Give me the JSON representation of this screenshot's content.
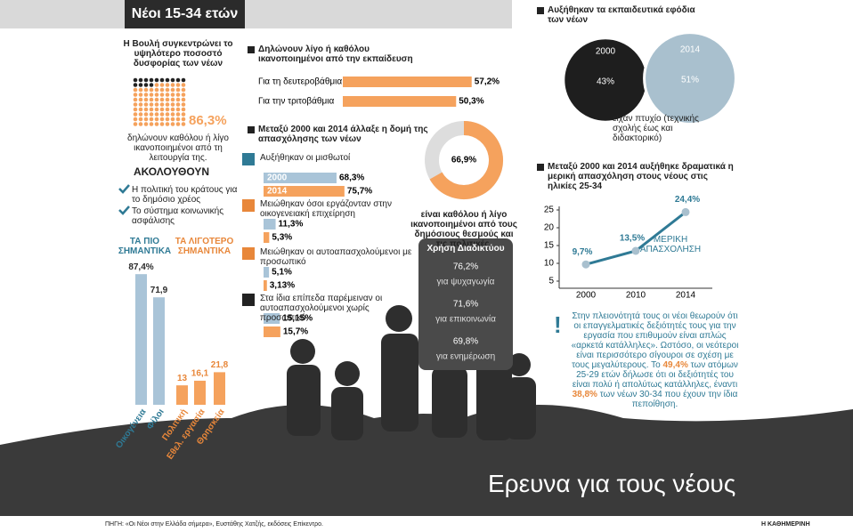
{
  "header": {
    "tag": "Νέοι 15-34 ετών",
    "title": "Ερευνα για τους νέους",
    "source": "ΠΗΓΗ: «Οι Νέοι στην Ελλάδα σήμερα», Ευστάθης Χατζής, εκδόσεις Επίκεντρο.",
    "publisher": "Η ΚΑΘΗΜΕΡΙΝΗ"
  },
  "parliament": {
    "title": "Η Βουλή συγκεντρώνει το υψηλότερο ποσοστό δυσφορίας των νέων",
    "value": 86.3,
    "value_label": "86,3%",
    "caption": "δηλώνουν καθόλου ή λίγο ικανοποιημένοι από τη λειτουργία της.",
    "follow_title": "ΑΚΟΛΟΥΘΟΥΝ",
    "follow_items": [
      "Η πολιτική του κράτους για το δημόσιο χρέος",
      "Το σύστημα κοινωνικής ασφάλισης"
    ]
  },
  "importance": {
    "most_title": "ΤΑ ΠΙΟ ΣΗΜΑΝΤΙΚΑ",
    "least_title": "ΤΑ ΛΙΓΟΤΕΡΟ ΣΗΜΑΝΤΙΚΑ",
    "categories": [
      "Οικογένεια",
      "Φίλοι",
      "Πολιτική",
      "Εθελ. εργασία",
      "Θρησκεία"
    ],
    "values": [
      87.4,
      71.9,
      13,
      16.1,
      21.8
    ],
    "value_labels": [
      "87,4%",
      "71,9",
      "13",
      "16,1",
      "21,8"
    ],
    "colors": [
      "#a9c4d8",
      "#a9c4d8",
      "#f5a25d",
      "#f5a25d",
      "#f5a25d"
    ]
  },
  "education": {
    "title": "Δηλώνουν λίγο ή καθόλου ικανοποιημένοι από την εκπαίδευση",
    "categories": [
      "Για τη δευτεροβάθμια",
      "Για την τριτοβάθμια"
    ],
    "values": [
      57.2,
      50.3
    ],
    "value_labels": [
      "57,2%",
      "50,3%"
    ],
    "color": "#f5a25d"
  },
  "employment": {
    "title": "Μεταξύ 2000 και 2014 άλλαξε η δομή της απασχόλησης των νέων",
    "years": [
      "2000",
      "2014"
    ],
    "colors": [
      "#a9c4d8",
      "#f5a25d"
    ],
    "groups": [
      {
        "label": "Αυξήθηκαν οι μισθωτοί",
        "values": [
          68.3,
          75.7
        ],
        "value_labels": [
          "68,3%",
          "75,7%"
        ]
      },
      {
        "label": "Μειώθηκαν όσοι εργάζονταν στην οικογενειακή επιχείρηση",
        "values": [
          11.3,
          5.3
        ],
        "value_labels": [
          "11,3%",
          "5,3%"
        ]
      },
      {
        "label": "Μειώθηκαν οι αυτοαπασχολούμενοι με προσωπικό",
        "values": [
          5.1,
          3.13
        ],
        "value_labels": [
          "5,1%",
          "3,13%"
        ]
      },
      {
        "label": "Στα ίδια επίπεδα παρέμειναν οι αυτοαπασχολούμενοι χωρίς προσωπικό",
        "values": [
          15.15,
          15.7
        ],
        "value_labels": [
          "15,15%",
          "15,7%"
        ]
      }
    ]
  },
  "institutions": {
    "value": 66.9,
    "value_label": "66,9%",
    "caption": "είναι καθόλου ή λίγο ικανοποιημένοι από τους δημόσιους θεσμούς και τις πολιτικές."
  },
  "internet": {
    "title": "Χρήση Διαδικτύου",
    "items": [
      {
        "value": 76.2,
        "value_label": "76,2%",
        "label": "για ψυχαγωγία"
      },
      {
        "value": 71.6,
        "value_label": "71,6%",
        "label": "για επικοινωνία"
      },
      {
        "value": 69.8,
        "value_label": "69,8%",
        "label": "για ενημέρωση"
      }
    ]
  },
  "qualifications": {
    "title": "Αυξήθηκαν τα εκπαιδευτικά εφόδια των νέων",
    "circles": [
      {
        "year": "2000",
        "value": 43,
        "value_label": "43%",
        "color": "#1e1e1e"
      },
      {
        "year": "2014",
        "value": 51,
        "value_label": "51%",
        "color": "#a9c0ce"
      }
    ],
    "caption": "είχαν πτυχίο (τεχνικής σχολής έως και διδακτορικό)"
  },
  "part_time": {
    "title": "Μεταξύ 2000 και 2014 αυξήθηκε δραματικά η μερική απασχόληση στους νέους στις ηλικίες 25-34",
    "x": [
      "2000",
      "2010",
      "2014"
    ],
    "values": [
      9.7,
      13.5,
      24.4
    ],
    "value_labels": [
      "9,7%",
      "13,5%",
      "24,4%"
    ],
    "series_label": "ΜΕΡΙΚΗ ΑΠΑΣΧΟΛΗΣΗ",
    "color": "#2f7a95",
    "ylim": [
      3,
      26
    ],
    "yticks": [
      5,
      10,
      15,
      20,
      25
    ]
  },
  "note": {
    "mark": "!",
    "text": "Στην πλειονότητά τους οι νέοι θεωρούν ότι οι επαγγελματικές δεξιότητές τους για την εργασία που επιθυμούν είναι απλώς «αρκετά κατάλληλες». Ωστόσο, οι νεότεροι είναι περισσότερο σίγουροι σε σχέση με τους μεγαλύτερους.",
    "part1": "Το",
    "highlight1": "49,4%",
    "part2": "των ατόμων 25-29 ετών δήλωσε ότι οι δεξιότητές του είναι πολύ ή απολύτως κατάλληλες, έναντι",
    "highlight2": "38,8%",
    "part3": "των νέων 30-34 που έχουν την ίδια πεποίθηση."
  }
}
